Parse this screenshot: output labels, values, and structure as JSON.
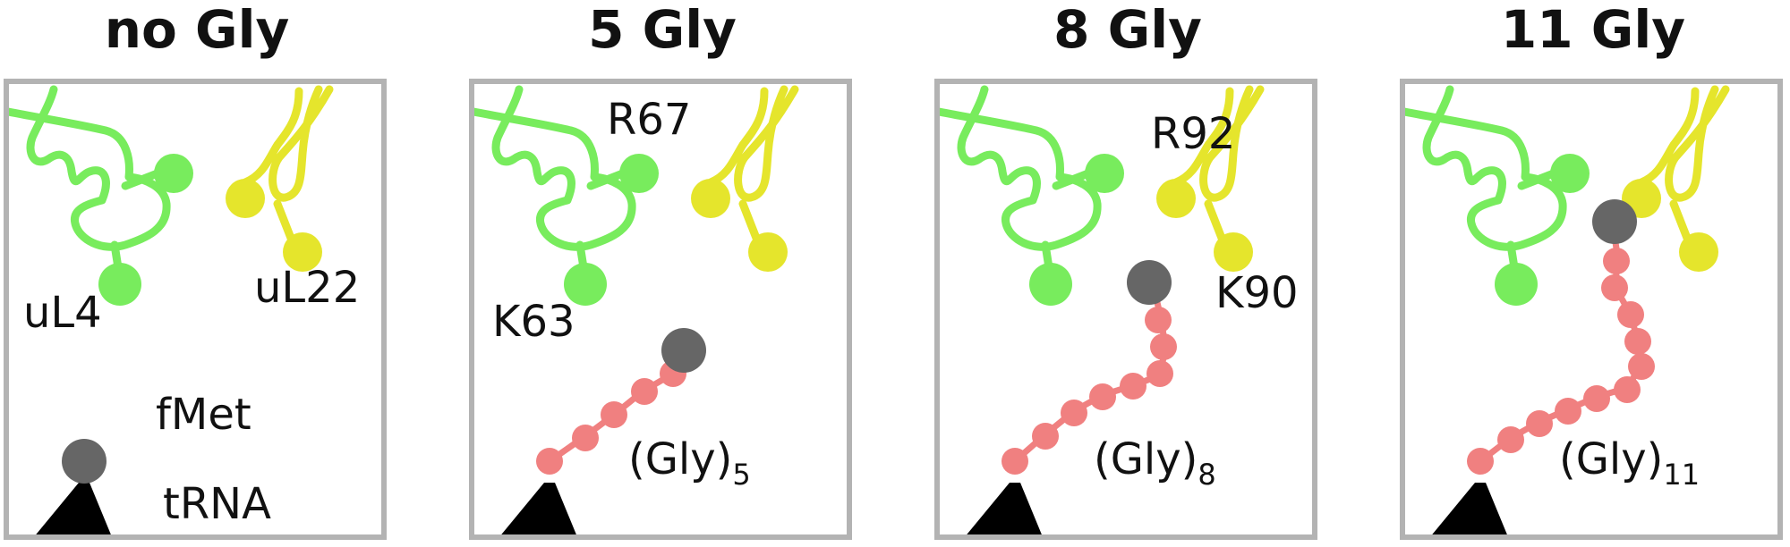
{
  "panels": [
    {
      "title": "no Gly",
      "labels": {
        "uL4": "uL4",
        "uL22": "uL22",
        "fMet": "fMet",
        "tRNA": "tRNA"
      }
    },
    {
      "title": "5 Gly",
      "labels": {
        "uL4_residue": "R67",
        "uL4_residue2": "K63",
        "chain_base": "(Gly)",
        "chain_sub": "5"
      }
    },
    {
      "title": "8 Gly",
      "labels": {
        "uL22_residue": "R92",
        "uL22_residue2": "K90",
        "chain_base": "(Gly)",
        "chain_sub": "8"
      }
    },
    {
      "title": "11 Gly",
      "labels": {
        "chain_base": "(Gly)",
        "chain_sub": "11"
      }
    }
  ],
  "colors": {
    "uL4": "#78ec5d",
    "uL22": "#e5e52c",
    "glycine": "#f08080",
    "fmet": "#666666",
    "trna": "#000000",
    "frame": "#b3b3b3"
  }
}
